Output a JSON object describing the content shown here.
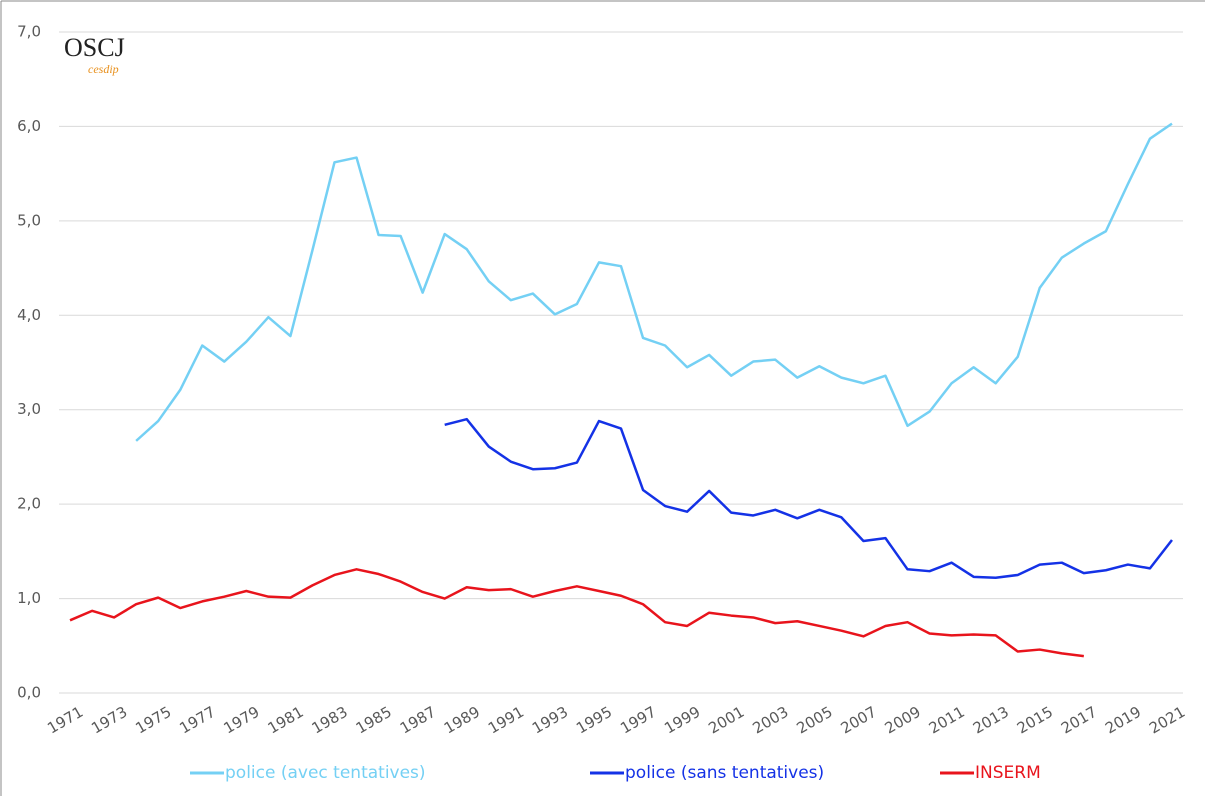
{
  "chart_data": {
    "type": "line",
    "annotations": [
      "OSCJ",
      "cesdip"
    ],
    "x": [
      1971,
      1972,
      1973,
      1974,
      1975,
      1976,
      1977,
      1978,
      1979,
      1980,
      1981,
      1982,
      1983,
      1984,
      1985,
      1986,
      1987,
      1988,
      1989,
      1990,
      1991,
      1992,
      1993,
      1994,
      1995,
      1996,
      1997,
      1998,
      1999,
      2000,
      2001,
      2002,
      2003,
      2004,
      2005,
      2006,
      2007,
      2008,
      2009,
      2010,
      2011,
      2012,
      2013,
      2014,
      2015,
      2016,
      2017,
      2018,
      2019,
      2020,
      2021
    ],
    "series": [
      {
        "name": "police (avec tentatives)",
        "color": "#74d0f4",
        "values": [
          null,
          null,
          null,
          2.67,
          2.88,
          3.21,
          3.68,
          3.51,
          3.72,
          3.98,
          3.78,
          4.69,
          5.62,
          5.67,
          4.85,
          4.84,
          4.24,
          4.86,
          4.7,
          4.36,
          4.16,
          4.23,
          4.01,
          4.12,
          4.56,
          4.52,
          3.76,
          3.68,
          3.45,
          3.58,
          3.36,
          3.51,
          3.53,
          3.34,
          3.46,
          3.34,
          3.28,
          3.36,
          2.83,
          2.98,
          3.28,
          3.45,
          3.28,
          3.56,
          4.29,
          4.61,
          4.76,
          4.89,
          5.39,
          5.87,
          6.03
        ]
      },
      {
        "name": "police (sans tentatives)",
        "color": "#1432e6",
        "values": [
          null,
          null,
          null,
          null,
          null,
          null,
          null,
          null,
          null,
          null,
          null,
          null,
          null,
          null,
          null,
          null,
          null,
          2.84,
          2.9,
          2.61,
          2.45,
          2.37,
          2.38,
          2.44,
          2.88,
          2.8,
          2.15,
          1.98,
          1.92,
          2.14,
          1.91,
          1.88,
          1.94,
          1.85,
          1.94,
          1.86,
          1.61,
          1.64,
          1.31,
          1.29,
          1.38,
          1.23,
          1.22,
          1.25,
          1.36,
          1.38,
          1.27,
          1.3,
          1.36,
          1.32,
          1.62
        ]
      },
      {
        "name": "INSERM",
        "color": "#e8141c",
        "values": [
          0.77,
          0.87,
          0.8,
          0.94,
          1.01,
          0.9,
          0.97,
          1.02,
          1.08,
          1.02,
          1.01,
          1.14,
          1.25,
          1.31,
          1.26,
          1.18,
          1.07,
          1.0,
          1.12,
          1.09,
          1.1,
          1.02,
          1.08,
          1.13,
          1.08,
          1.03,
          0.94,
          0.75,
          0.71,
          0.85,
          0.82,
          0.8,
          0.74,
          0.76,
          0.71,
          0.66,
          0.6,
          0.71,
          0.75,
          0.63,
          0.61,
          0.62,
          0.61,
          0.44,
          0.46,
          0.42,
          0.39,
          null,
          null,
          null,
          null
        ]
      }
    ],
    "xlim": [
      1970.5,
      2021.5
    ],
    "xticks": [
      1971,
      1973,
      1975,
      1977,
      1979,
      1981,
      1983,
      1985,
      1987,
      1989,
      1991,
      1993,
      1995,
      1997,
      1999,
      2001,
      2003,
      2005,
      2007,
      2009,
      2011,
      2013,
      2015,
      2017,
      2019,
      2021
    ],
    "ylim": [
      0,
      7
    ],
    "yticks": [
      {
        "value": 0,
        "label": "0,0"
      },
      {
        "value": 1,
        "label": "1,0"
      },
      {
        "value": 2,
        "label": "2,0"
      },
      {
        "value": 3,
        "label": "3,0"
      },
      {
        "value": 4,
        "label": "4,0"
      },
      {
        "value": 5,
        "label": "5,0"
      },
      {
        "value": 6,
        "label": "6,0"
      },
      {
        "value": 7,
        "label": "7,0"
      }
    ],
    "grid": true,
    "legend": "bottom"
  }
}
